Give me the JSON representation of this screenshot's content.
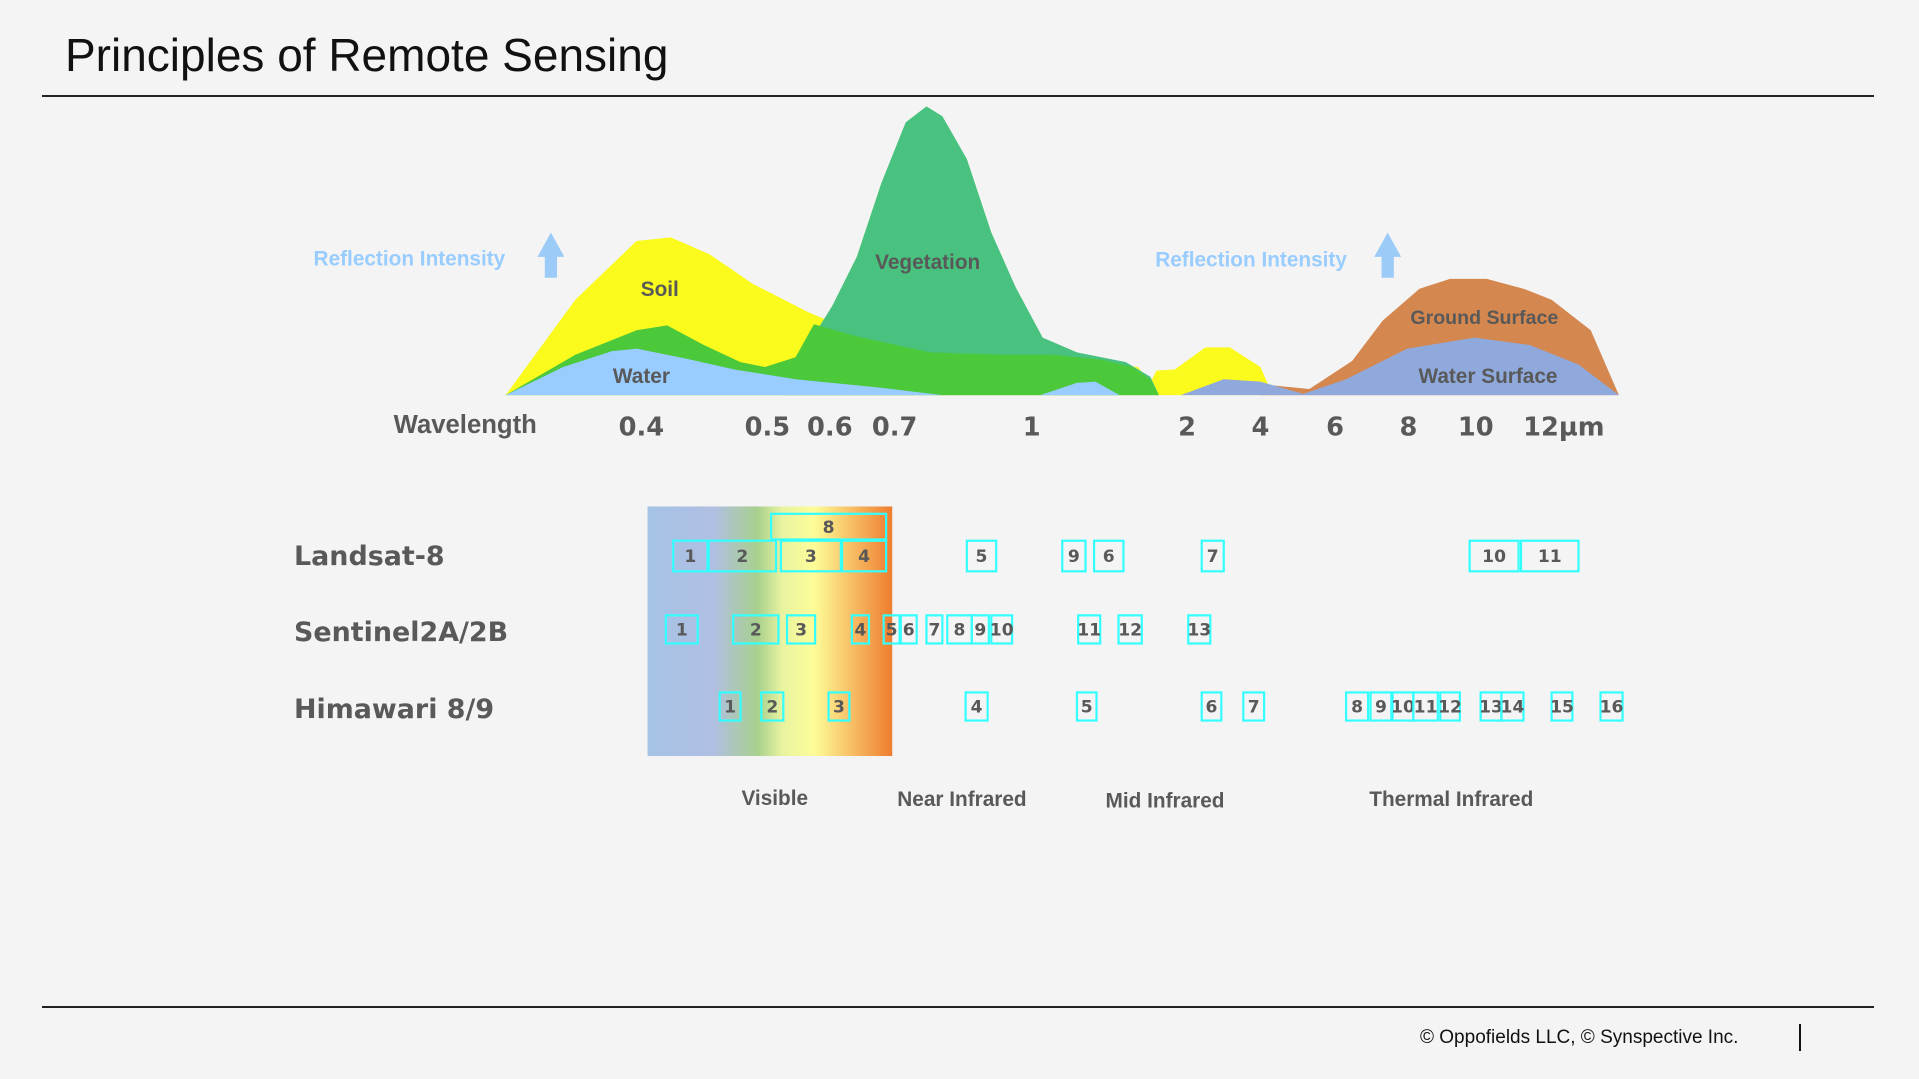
{
  "header": {
    "title": "Principles of Remote Sensing"
  },
  "footer": {
    "copyright": "© Oppofields LLC, © Synspective Inc."
  },
  "spectrum_chart": {
    "y_label_left": "Reflection Intensity",
    "y_label_right": "Reflection Intensity",
    "x_label": "Wavelength",
    "ticks": [
      "0.4",
      "0.5",
      "0.6",
      "0.7",
      "1",
      "2",
      "4",
      "6",
      "8",
      "10",
      "12µm"
    ],
    "curves": {
      "soil": "Soil",
      "vegetation": "Vegetation",
      "water": "Water",
      "ground_surface": "Ground Surface",
      "water_surface": "Water Surface"
    },
    "colors": {
      "soil": "#fafa1c",
      "vegetation": "#48c27e",
      "vegetation_low": "#4cc83b",
      "water": "#99ccff",
      "ground_surface": "#d4874f",
      "water_surface": "#8fa9dc",
      "arrow": "#9ccbf7"
    }
  },
  "bands": {
    "satellites": [
      "Landsat-8",
      "Sentinel2A/2B",
      "Himawari 8/9"
    ],
    "landsat": [
      "8",
      "1",
      "2",
      "3",
      "4",
      "5",
      "9",
      "6",
      "7",
      "10",
      "11"
    ],
    "sentinel": [
      "1",
      "2",
      "3",
      "4",
      "5",
      "6",
      "7",
      "8",
      "9",
      "10",
      "11",
      "12",
      "13"
    ],
    "himawari": [
      "1",
      "2",
      "3",
      "4",
      "5",
      "6",
      "7",
      "8",
      "9",
      "10",
      "11",
      "12",
      "13",
      "14",
      "15",
      "16"
    ],
    "regions": [
      "Visible",
      "Near Infrared",
      "Mid Infrared",
      "Thermal Infrared"
    ],
    "box_color": "#33ffff"
  }
}
